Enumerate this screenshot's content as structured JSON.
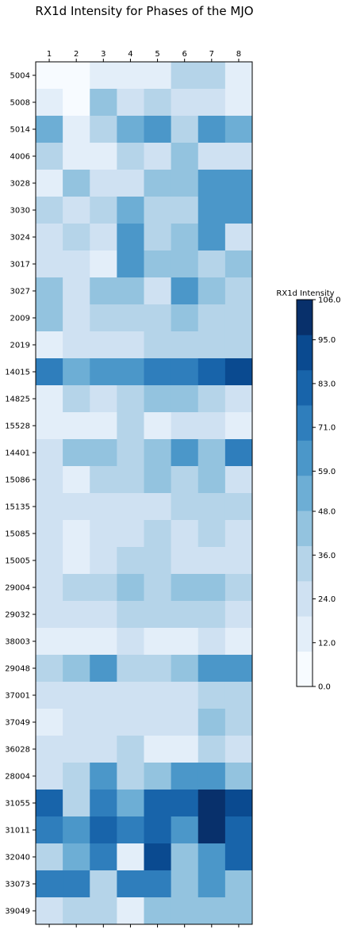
{
  "chart_data": {
    "type": "heatmap",
    "title": "RX1d Intensity for Phases of the MJO",
    "x_categories": [
      "1",
      "2",
      "3",
      "4",
      "5",
      "6",
      "7",
      "8"
    ],
    "y_categories": [
      "5004",
      "5008",
      "5014",
      "4006",
      "3028",
      "3030",
      "3024",
      "3017",
      "3027",
      "2009",
      "2019",
      "14015",
      "14825",
      "15528",
      "14401",
      "15086",
      "15135",
      "15085",
      "15005",
      "29004",
      "29032",
      "38003",
      "29048",
      "37001",
      "37049",
      "36028",
      "28004",
      "31055",
      "31011",
      "32040",
      "33073",
      "39049"
    ],
    "values": [
      [
        5,
        5,
        18,
        18,
        18,
        38,
        38,
        16
      ],
      [
        16,
        3,
        48,
        26,
        38,
        28,
        28,
        16
      ],
      [
        50,
        16,
        38,
        50,
        60,
        38,
        60,
        50
      ],
      [
        38,
        16,
        16,
        38,
        28,
        48,
        28,
        28
      ],
      [
        16,
        48,
        26,
        28,
        48,
        48,
        60,
        60
      ],
      [
        38,
        26,
        38,
        50,
        38,
        38,
        60,
        60
      ],
      [
        28,
        38,
        26,
        60,
        38,
        48,
        60,
        26
      ],
      [
        28,
        28,
        16,
        60,
        48,
        48,
        38,
        48
      ],
      [
        48,
        28,
        48,
        48,
        28,
        60,
        48,
        38
      ],
      [
        48,
        28,
        38,
        38,
        38,
        48,
        38,
        38
      ],
      [
        16,
        28,
        28,
        28,
        38,
        38,
        38,
        38
      ],
      [
        68,
        50,
        60,
        60,
        68,
        68,
        78,
        90
      ],
      [
        16,
        38,
        28,
        38,
        48,
        48,
        38,
        28
      ],
      [
        16,
        16,
        16,
        38,
        16,
        28,
        28,
        16
      ],
      [
        28,
        48,
        48,
        38,
        48,
        60,
        48,
        72
      ],
      [
        28,
        16,
        38,
        38,
        48,
        38,
        48,
        28
      ],
      [
        28,
        28,
        28,
        28,
        28,
        38,
        38,
        38
      ],
      [
        28,
        16,
        28,
        28,
        38,
        28,
        38,
        28
      ],
      [
        28,
        16,
        28,
        38,
        38,
        28,
        28,
        28
      ],
      [
        28,
        38,
        38,
        48,
        38,
        48,
        48,
        38
      ],
      [
        28,
        28,
        28,
        38,
        38,
        38,
        38,
        28
      ],
      [
        16,
        16,
        16,
        28,
        16,
        16,
        28,
        16
      ],
      [
        38,
        48,
        60,
        38,
        38,
        48,
        60,
        60
      ],
      [
        28,
        28,
        28,
        28,
        28,
        28,
        38,
        38
      ],
      [
        16,
        28,
        28,
        28,
        28,
        28,
        48,
        38
      ],
      [
        28,
        28,
        28,
        38,
        16,
        16,
        38,
        28
      ],
      [
        28,
        38,
        60,
        38,
        48,
        60,
        60,
        48
      ],
      [
        78,
        38,
        68,
        50,
        78,
        78,
        106,
        90
      ],
      [
        70,
        60,
        78,
        68,
        78,
        60,
        106,
        78
      ],
      [
        38,
        50,
        68,
        16,
        92,
        48,
        60,
        78
      ],
      [
        68,
        68,
        38,
        68,
        68,
        48,
        60,
        48
      ],
      [
        28,
        38,
        38,
        16,
        48,
        48,
        48,
        48
      ]
    ],
    "colorbar": {
      "label": "RX1d Intensity",
      "ticks": [
        "0.0",
        "12.0",
        "24.0",
        "36.0",
        "48.0",
        "59.0",
        "71.0",
        "83.0",
        "95.0",
        "106.0"
      ],
      "min": 0,
      "max": 106.0,
      "colors": [
        "#f7fbff",
        "#e3eef9",
        "#cfe1f2",
        "#b5d4e9",
        "#93c3df",
        "#6daed5",
        "#4b97c9",
        "#2f7ebc",
        "#1864aa",
        "#0a4a90",
        "#08306b"
      ]
    },
    "x_tick_position": "top-and-bottom",
    "grid": false
  }
}
